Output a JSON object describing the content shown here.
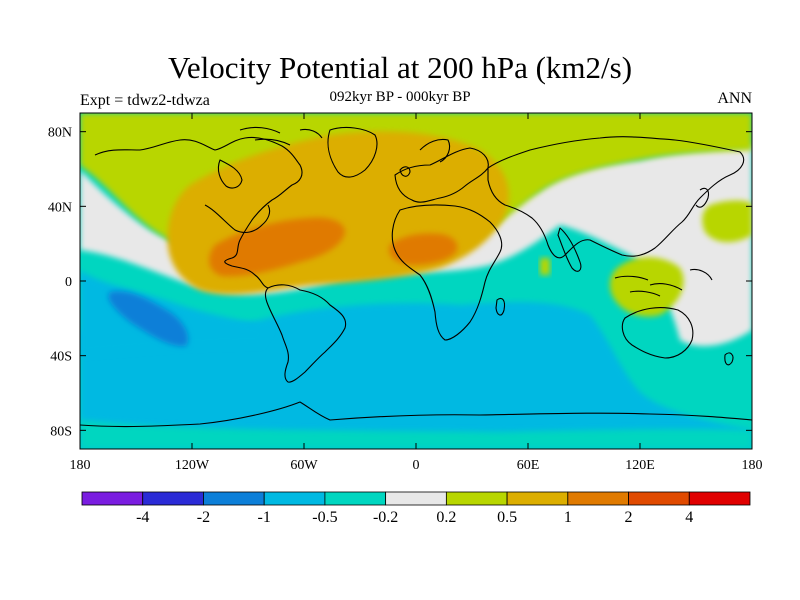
{
  "header": {
    "title": "Velocity Potential at 200 hPa (km2/s)",
    "subtitle": "092kyr BP - 000kyr BP",
    "left_label": "Expt = tdwz2-tdwza",
    "right_label": "ANN"
  },
  "chart_data": {
    "type": "heatmap",
    "lon_range": [
      -180,
      180
    ],
    "lat_range": [
      -90,
      90
    ],
    "x_ticks": [
      {
        "value": -180,
        "label": "180"
      },
      {
        "value": -120,
        "label": "120W"
      },
      {
        "value": -60,
        "label": "60W"
      },
      {
        "value": 0,
        "label": "0"
      },
      {
        "value": 60,
        "label": "60E"
      },
      {
        "value": 120,
        "label": "120E"
      },
      {
        "value": 180,
        "label": "180"
      }
    ],
    "y_ticks": [
      {
        "value": 80,
        "label": "80N"
      },
      {
        "value": 40,
        "label": "40N"
      },
      {
        "value": 0,
        "label": "0"
      },
      {
        "value": -40,
        "label": "40S"
      },
      {
        "value": -80,
        "label": "80S"
      }
    ],
    "colorbar": {
      "colors": [
        "#7a1de0",
        "#2b2bd6",
        "#0c7fd8",
        "#00b9e2",
        "#00d6c0",
        "#e8e8e8",
        "#b8d600",
        "#dcae00",
        "#e07a00",
        "#e04a00",
        "#e00000"
      ],
      "boundaries": [
        -4,
        -2,
        -1,
        -0.5,
        -0.2,
        0.2,
        0.5,
        1,
        2,
        4
      ],
      "labels": [
        "-4",
        "-2",
        "-1",
        "-0.5",
        "-0.2",
        "0.2",
        "0.5",
        "1",
        "2",
        "4"
      ]
    },
    "field_regions": [
      {
        "level": "0.2 to 0.5",
        "color": "#b8d600",
        "lon": [
          -180,
          180
        ],
        "lat": [
          50,
          90
        ]
      },
      {
        "level": "0.5 to 1",
        "color": "#dcae00",
        "lon": [
          -135,
          50
        ],
        "lat": [
          5,
          80
        ]
      },
      {
        "level": "1 to 2",
        "color": "#e07a00",
        "lon": [
          -110,
          -35
        ],
        "lat": [
          0,
          35
        ]
      },
      {
        "level": "1 to 2",
        "color": "#e07a00",
        "lon": [
          -15,
          20
        ],
        "lat": [
          10,
          25
        ]
      },
      {
        "level": "-0.2 to 0.2",
        "color": "#e8e8e8",
        "lon": [
          35,
          180
        ],
        "lat": [
          -20,
          70
        ]
      },
      {
        "level": "0.2 to 0.5",
        "color": "#b8d600",
        "lon": [
          110,
          160
        ],
        "lat": [
          -25,
          10
        ]
      },
      {
        "level": "-0.5 to -0.2",
        "color": "#00d6c0",
        "lon": [
          -180,
          180
        ],
        "lat": [
          -90,
          10
        ]
      },
      {
        "level": "-1 to -0.5",
        "color": "#00b9e2",
        "lon": [
          -170,
          70
        ],
        "lat": [
          -80,
          -10
        ]
      },
      {
        "level": "-2 to -1",
        "color": "#0c7fd8",
        "lon": [
          -170,
          -120
        ],
        "lat": [
          -35,
          -5
        ]
      }
    ]
  }
}
